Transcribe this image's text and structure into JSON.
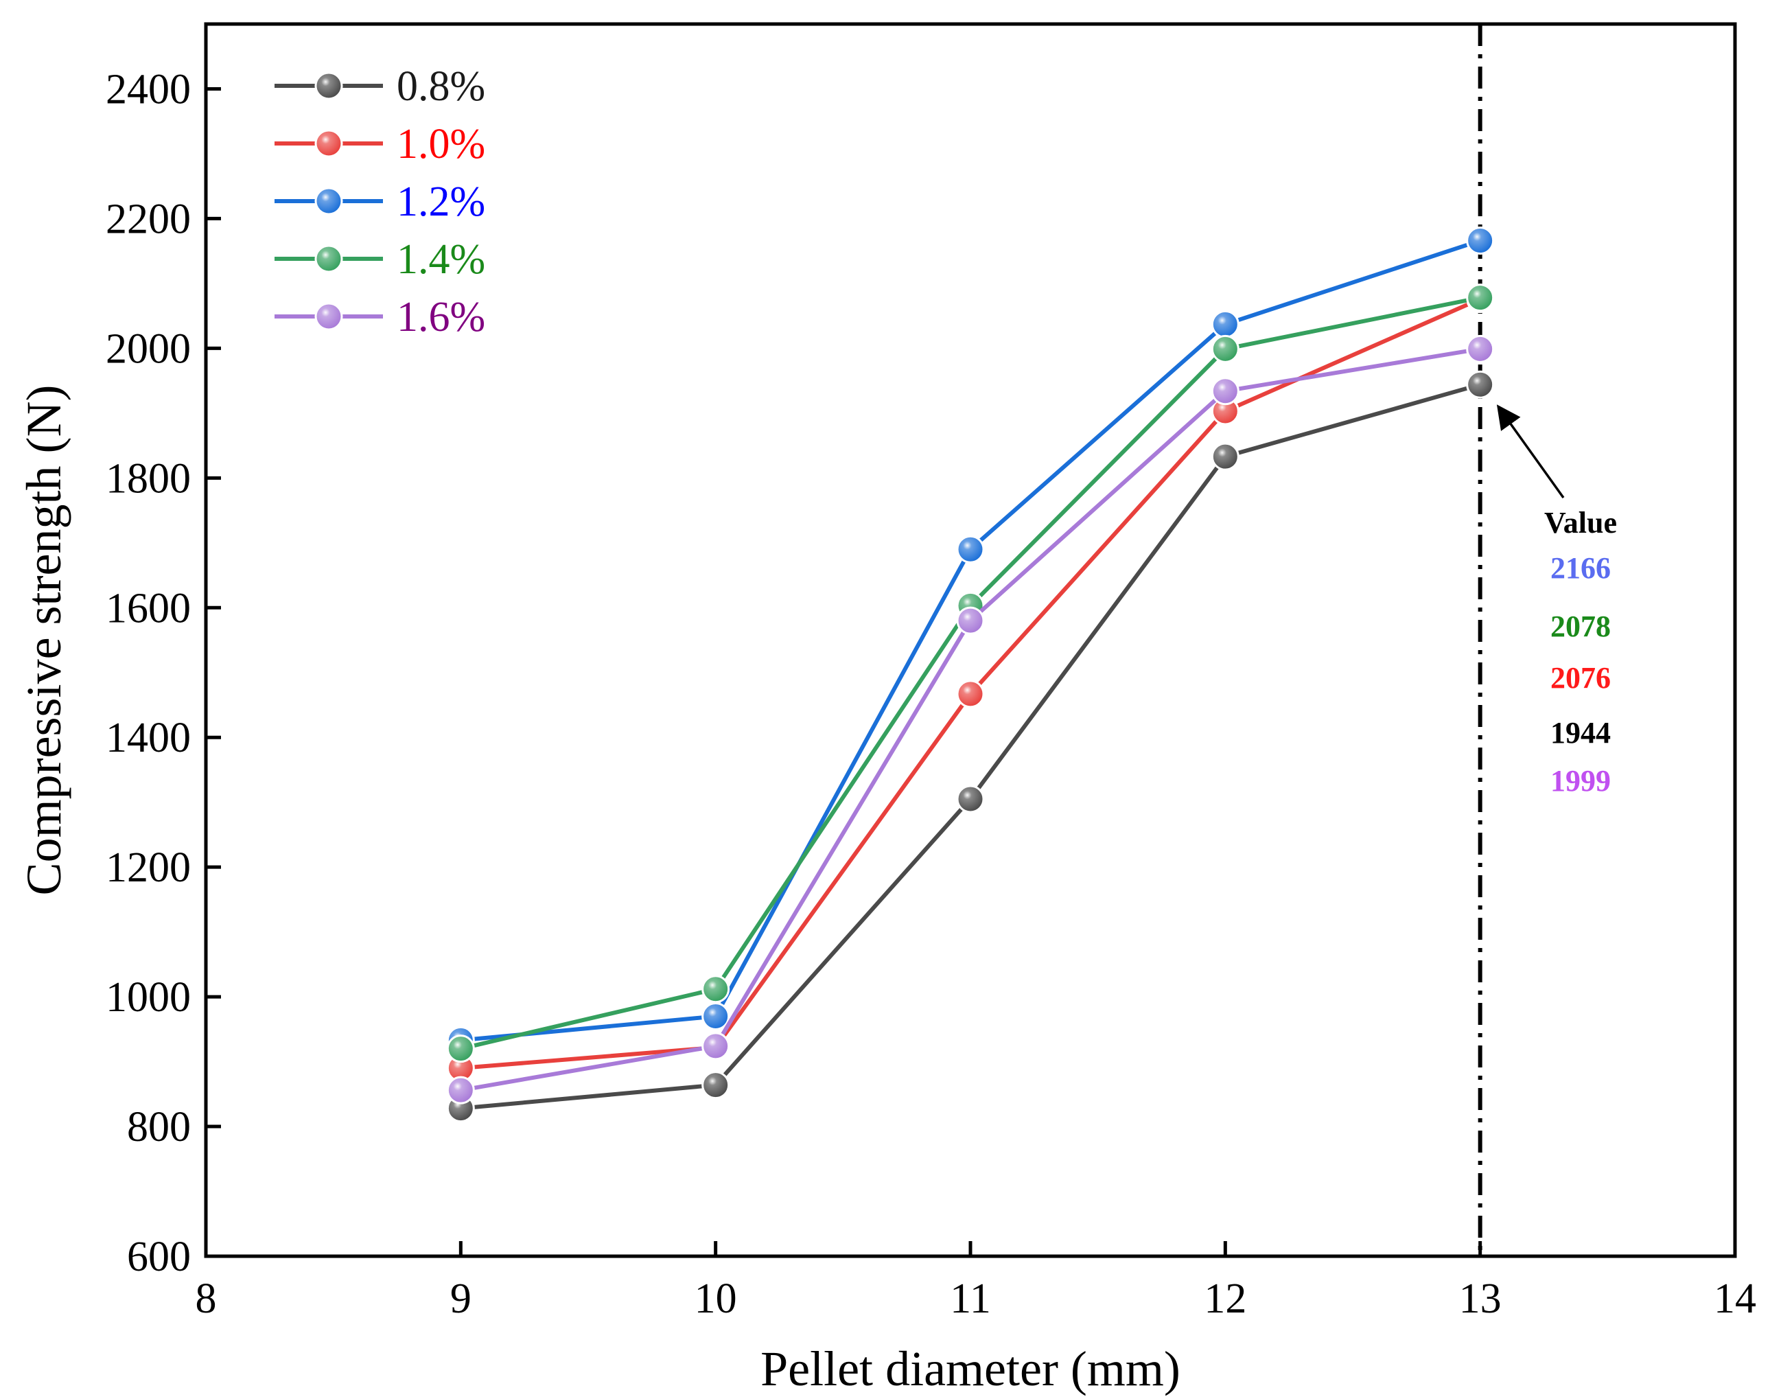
{
  "chart_data": {
    "type": "line",
    "xlabel": "Pellet diameter (mm)",
    "ylabel": "Compressive strength (N)",
    "xlim": [
      8,
      14
    ],
    "ylim": [
      600,
      2500
    ],
    "xticks": [
      8,
      9,
      10,
      11,
      12,
      13,
      14
    ],
    "yticks": [
      600,
      800,
      1000,
      1200,
      1400,
      1600,
      1800,
      2000,
      2200,
      2400
    ],
    "grid": false,
    "legend_position": "top-left",
    "x": [
      9,
      10,
      11,
      12,
      13
    ],
    "series": [
      {
        "name": "0.8%",
        "color": "#4a4a4a",
        "label_color": "#1a1a1a",
        "values": [
          828,
          864,
          1305,
          1833,
          1944
        ]
      },
      {
        "name": "1.0%",
        "color": "#e8403c",
        "label_color": "#ff0000",
        "values": [
          890,
          922,
          1467,
          1903,
          2076
        ]
      },
      {
        "name": "1.2%",
        "color": "#1a6fd8",
        "label_color": "#0000ff",
        "values": [
          933,
          970,
          1690,
          2037,
          2166
        ]
      },
      {
        "name": "1.4%",
        "color": "#35a05e",
        "label_color": "#1a8a1a",
        "values": [
          920,
          1012,
          1603,
          1999,
          2078
        ]
      },
      {
        "name": "1.6%",
        "color": "#a87ad8",
        "label_color": "#800080",
        "values": [
          856,
          924,
          1580,
          1934,
          1999
        ]
      }
    ],
    "reference_line": {
      "x": 13,
      "style": "dash-dot"
    },
    "annotation": {
      "title": "Value",
      "values": [
        {
          "text": "2166",
          "color": "#5a6cf0"
        },
        {
          "text": "2078",
          "color": "#1a8a1a"
        },
        {
          "text": "2076",
          "color": "#ff1a1a"
        },
        {
          "text": "1944",
          "color": "#000000"
        },
        {
          "text": "1999",
          "color": "#c050f0"
        }
      ]
    }
  }
}
